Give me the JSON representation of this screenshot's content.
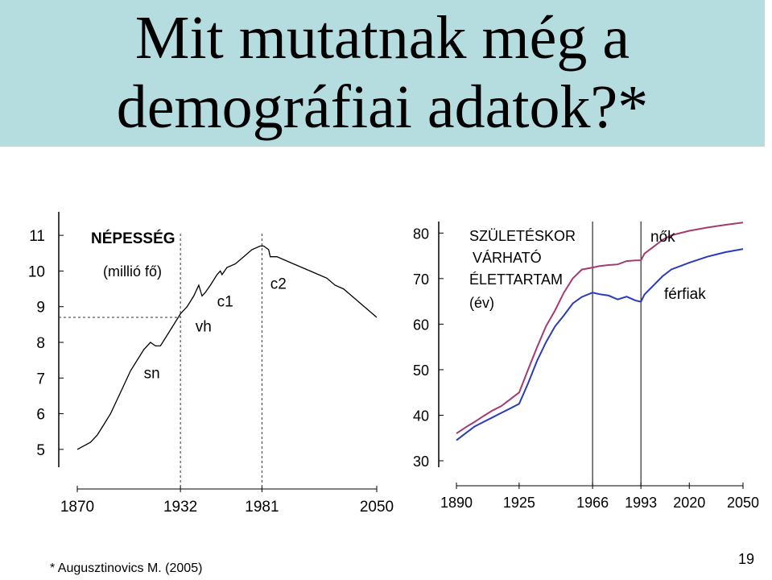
{
  "slide": {
    "title_line1": "Mit mutatnak még a",
    "title_line2": "demográfiai adatok?*",
    "footnote": "* Augusztinovics M. (2005)",
    "page_number": "19",
    "title_bg": "#b5dde0"
  },
  "chart_data": [
    {
      "type": "line",
      "title": "NÉPESSÉG",
      "subtitle": "(millió fő)",
      "xlabel": "",
      "ylabel": "",
      "x_ticks": [
        1870,
        1932,
        1981,
        2050
      ],
      "y_ticks": [
        5,
        6,
        7,
        8,
        9,
        10,
        11
      ],
      "xlim": [
        1870,
        2050
      ],
      "ylim": [
        4.5,
        11.5
      ],
      "vertical_lines": [
        1932,
        1981
      ],
      "horizontal_line": 8.7,
      "annotations": [
        {
          "text": "sn",
          "x": 1910,
          "y": 7.0
        },
        {
          "text": "vh",
          "x": 1941,
          "y": 8.3
        },
        {
          "text": "c1",
          "x": 1954,
          "y": 9.0
        },
        {
          "text": "c2",
          "x": 1986,
          "y": 9.5
        }
      ],
      "series": [
        {
          "color": "#000000",
          "x": [
            1870,
            1874,
            1878,
            1882,
            1886,
            1890,
            1894,
            1898,
            1902,
            1906,
            1910,
            1914,
            1917,
            1920,
            1924,
            1928,
            1932,
            1936,
            1940,
            1943,
            1945,
            1947,
            1950,
            1954,
            1956,
            1957,
            1960,
            1965,
            1970,
            1975,
            1980,
            1982,
            1985,
            1986,
            1990,
            1995,
            2000,
            2005,
            2010,
            2015,
            2020,
            2025,
            2030,
            2035,
            2040,
            2045,
            2050
          ],
          "y": [
            5.0,
            5.1,
            5.2,
            5.4,
            5.7,
            6.0,
            6.4,
            6.8,
            7.2,
            7.5,
            7.8,
            8.0,
            7.9,
            7.9,
            8.2,
            8.5,
            8.8,
            9.0,
            9.3,
            9.6,
            9.3,
            9.4,
            9.6,
            9.9,
            10.0,
            9.9,
            10.1,
            10.2,
            10.4,
            10.6,
            10.7,
            10.7,
            10.6,
            10.4,
            10.4,
            10.3,
            10.2,
            10.1,
            10.0,
            9.9,
            9.8,
            9.6,
            9.5,
            9.3,
            9.1,
            8.9,
            8.7
          ]
        }
      ]
    },
    {
      "type": "line",
      "title": "SZÜLETÉSKOR VÁRHATÓ ÉLETTARTAM",
      "subtitle": "(év)",
      "xlabel": "",
      "ylabel": "",
      "x_ticks": [
        1890,
        1925,
        1966,
        1993,
        2020,
        2050
      ],
      "y_ticks": [
        30,
        40,
        50,
        60,
        70,
        80
      ],
      "xlim": [
        1890,
        2050
      ],
      "ylim": [
        30,
        82
      ],
      "vertical_lines": [
        1966,
        1993
      ],
      "series": [
        {
          "name": "nők",
          "color": "#a23b72",
          "x": [
            1890,
            1895,
            1900,
            1905,
            1910,
            1915,
            1920,
            1925,
            1930,
            1935,
            1940,
            1945,
            1950,
            1955,
            1960,
            1966,
            1970,
            1975,
            1980,
            1985,
            1990,
            1993,
            1995,
            2000,
            2005,
            2010,
            2020,
            2030,
            2040,
            2050
          ],
          "y": [
            36.0,
            37.3,
            38.5,
            39.8,
            41.0,
            42.0,
            43.5,
            45.0,
            50.0,
            55.0,
            59.5,
            63.0,
            67.0,
            70.0,
            72.0,
            72.5,
            72.7,
            73.0,
            73.2,
            73.8,
            74.0,
            74.1,
            75.5,
            77.0,
            78.5,
            79.5,
            80.5,
            81.2,
            81.8,
            82.3
          ]
        },
        {
          "name": "férfiak",
          "color": "#2a3bb8",
          "x": [
            1890,
            1895,
            1900,
            1905,
            1910,
            1915,
            1920,
            1925,
            1930,
            1935,
            1940,
            1945,
            1950,
            1955,
            1960,
            1966,
            1970,
            1975,
            1980,
            1985,
            1990,
            1993,
            1995,
            2000,
            2005,
            2010,
            2020,
            2030,
            2040,
            2050
          ],
          "y": [
            34.5,
            36.0,
            37.5,
            38.5,
            39.5,
            40.5,
            41.5,
            42.5,
            47.0,
            52.0,
            56.0,
            59.5,
            62.0,
            64.5,
            66.0,
            67.0,
            66.5,
            66.3,
            65.5,
            66.0,
            65.2,
            65.0,
            66.5,
            68.5,
            70.5,
            72.0,
            73.5,
            74.8,
            75.8,
            76.5
          ]
        }
      ],
      "legend_labels": [
        "nők",
        "férfiak"
      ]
    }
  ]
}
